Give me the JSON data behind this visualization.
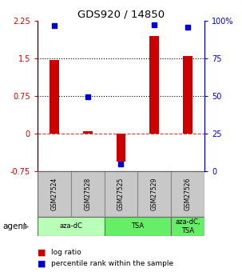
{
  "title": "GDS920 / 14850",
  "samples": [
    "GSM27524",
    "GSM27528",
    "GSM27525",
    "GSM27529",
    "GSM27526"
  ],
  "log_ratios": [
    1.46,
    0.04,
    -0.56,
    1.95,
    1.55
  ],
  "percentile_ranks": [
    96.5,
    49.5,
    4.5,
    97.5,
    95.5
  ],
  "ylim_left": [
    -0.75,
    2.25
  ],
  "ylim_right": [
    0,
    100
  ],
  "hlines_dotted": [
    0.75,
    1.5
  ],
  "hline_dashed": 0.0,
  "bar_color": "#cc0000",
  "dot_color": "#0000cc",
  "agent_label": "agent",
  "legend_red": "log ratio",
  "legend_blue": "percentile rank within the sample",
  "right_tick_labels": [
    "0",
    "25",
    "50",
    "75",
    "100%"
  ],
  "right_tick_vals": [
    0,
    25,
    50,
    75,
    100
  ],
  "left_tick_labels": [
    "-0.75",
    "0",
    "0.75",
    "1.5",
    "2.25"
  ],
  "left_tick_vals": [
    -0.75,
    0,
    0.75,
    1.5,
    2.25
  ],
  "background_color": "#ffffff",
  "sample_box_color": "#c8c8c8",
  "agent_color_azadc": "#b8ffb8",
  "agent_color_tsa": "#66ee66",
  "agent_color_both": "#66ee66"
}
